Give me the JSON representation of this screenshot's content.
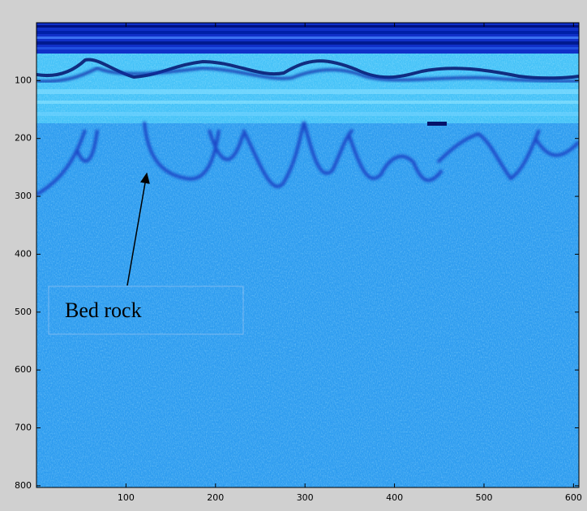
{
  "chart_data": {
    "type": "image",
    "xlim": [
      0,
      606
    ],
    "ylim": [
      0,
      803
    ],
    "y_reversed": true,
    "xticks": [
      100,
      200,
      300,
      400,
      500,
      600
    ],
    "yticks": [
      100,
      200,
      300,
      400,
      500,
      600,
      700,
      800
    ],
    "annotation": "Bed rock"
  }
}
